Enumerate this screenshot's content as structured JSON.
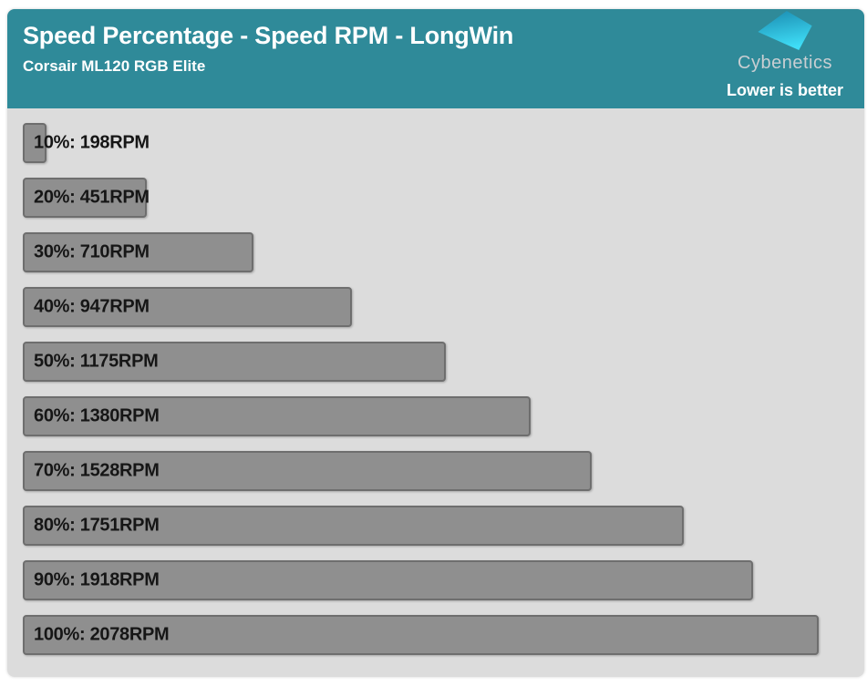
{
  "header": {
    "title": "Speed Percentage - Speed RPM - LongWin",
    "subtitle": "Corsair ML120 RGB Elite",
    "brand": "Cybenetics",
    "note": "Lower is better"
  },
  "colors": {
    "header_bg": "#2f8a99",
    "body_bg": "#dcdcdc",
    "bar_fill": "#8f8f8f",
    "bar_border": "#6e6e6e",
    "label_color": "#161616",
    "brand_color": "#c9ced2",
    "logo_gradient_start": "#1b8db2",
    "logo_gradient_end": "#3fdef7"
  },
  "chart_data": {
    "type": "bar",
    "orientation": "horizontal",
    "title": "Speed Percentage - Speed RPM - LongWin",
    "subtitle": "Corsair ML120 RGB Elite",
    "annotation": "Lower is better",
    "categories": [
      "10%",
      "20%",
      "30%",
      "40%",
      "50%",
      "60%",
      "70%",
      "80%",
      "90%",
      "100%"
    ],
    "values": [
      198,
      451,
      710,
      947,
      1175,
      1380,
      1528,
      1751,
      1918,
      2078
    ],
    "unit": "RPM",
    "labels": [
      "10%: 198RPM",
      "20%: 451RPM",
      "30%: 710RPM",
      "40%: 947RPM",
      "50%: 1175RPM",
      "60%: 1380RPM",
      "70%: 1528RPM",
      "80%: 1751RPM",
      "90%: 1918RPM",
      "100%: 2078RPM"
    ],
    "xlim": [
      0,
      2078
    ],
    "grid": false,
    "legend": false,
    "axis_labels_visible": false
  }
}
